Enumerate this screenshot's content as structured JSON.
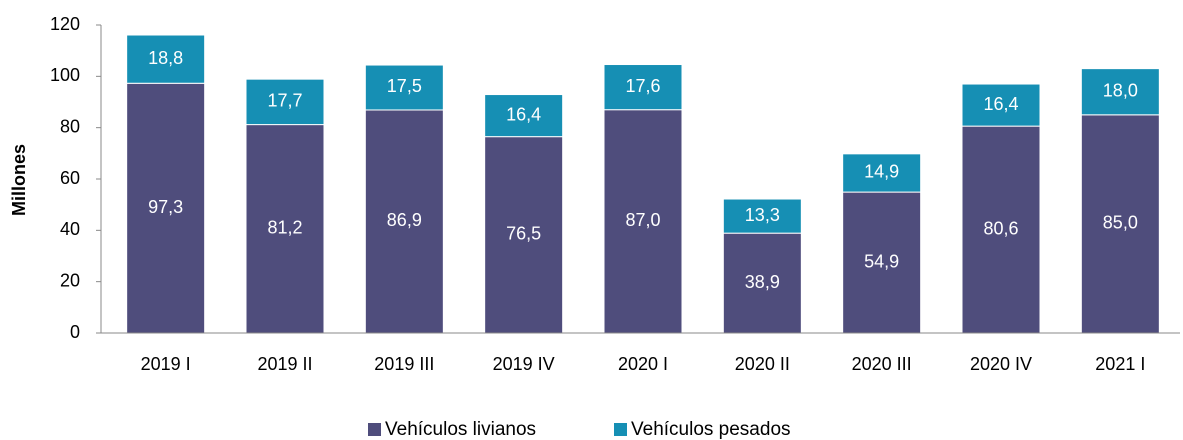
{
  "chart_data": {
    "type": "stacked_bar",
    "y_label": "Millones",
    "categories": [
      "2019 I",
      "2019 II",
      "2019 III",
      "2019 IV",
      "2020 I",
      "2020 II",
      "2020 III",
      "2020 IV",
      "2021 I"
    ],
    "series": [
      {
        "name": "Vehículos livianos",
        "color": "#4f4d7c",
        "values": [
          97.3,
          81.2,
          86.9,
          76.5,
          87.0,
          38.9,
          54.9,
          80.6,
          85.0
        ],
        "value_labels": [
          "97,3",
          "81,2",
          "86,9",
          "76,5",
          "87,0",
          "38,9",
          "54,9",
          "80,6",
          "85,0"
        ]
      },
      {
        "name": "Vehículos pesados",
        "color": "#168fb4",
        "values": [
          18.8,
          17.7,
          17.5,
          16.4,
          17.6,
          13.3,
          14.9,
          16.4,
          18.0
        ],
        "value_labels": [
          "18,8",
          "17,7",
          "17,5",
          "16,4",
          "17,6",
          "13,3",
          "14,9",
          "16,4",
          "18,0"
        ]
      }
    ],
    "ylim": [
      0,
      120
    ],
    "yticks": [
      0,
      20,
      40,
      60,
      80,
      100,
      120
    ],
    "legend": "bottom"
  }
}
